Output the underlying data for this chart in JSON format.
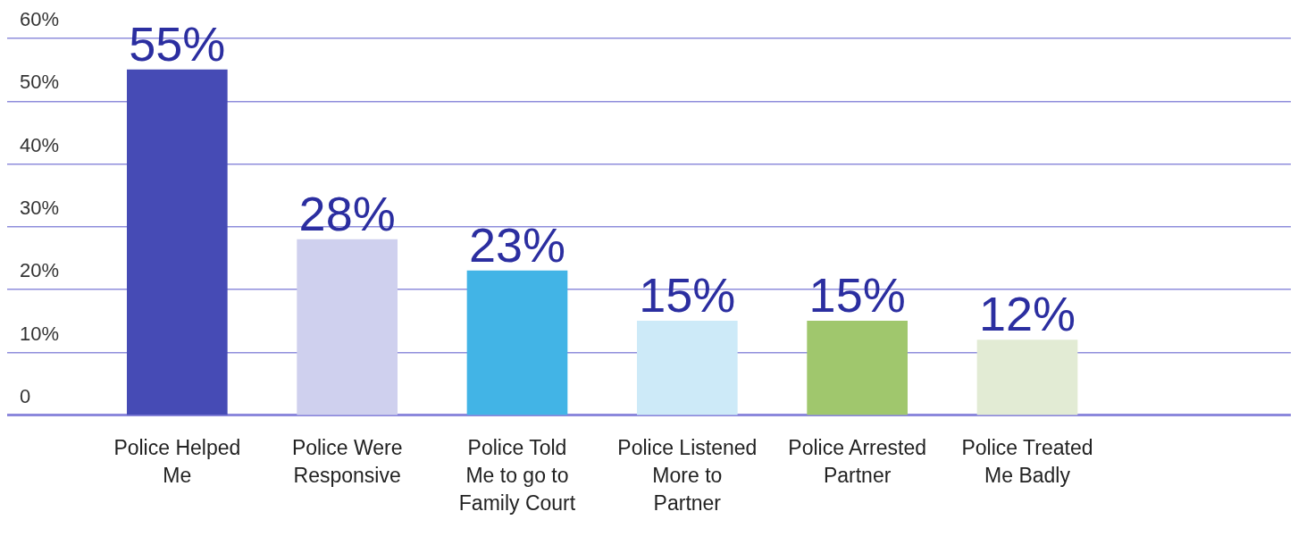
{
  "chart_data": {
    "type": "bar",
    "categories": [
      "Police Helped\nMe",
      "Police Were\nResponsive",
      "Police Told\nMe to go to\nFamily Court",
      "Police Listened\nMore to\nPartner",
      "Police Arrested\nPartner",
      "Police Treated\nMe Badly"
    ],
    "values": [
      55,
      28,
      23,
      15,
      15,
      12
    ],
    "colors": [
      "#464bb5",
      "#cfd0ee",
      "#42b4e6",
      "#cdeaf8",
      "#a0c76d",
      "#e2ebd4"
    ],
    "value_labels": [
      "55%",
      "28%",
      "23%",
      "15%",
      "15%",
      "12%"
    ],
    "ylim": [
      0,
      60
    ],
    "yticks": [
      {
        "value": 0,
        "label": "0"
      },
      {
        "value": 10,
        "label": "10%"
      },
      {
        "value": 20,
        "label": "20%"
      },
      {
        "value": 30,
        "label": "30%"
      },
      {
        "value": 40,
        "label": "40%"
      },
      {
        "value": 50,
        "label": "50%"
      },
      {
        "value": 60,
        "label": "60%"
      }
    ],
    "grid": "y",
    "legend": false
  }
}
